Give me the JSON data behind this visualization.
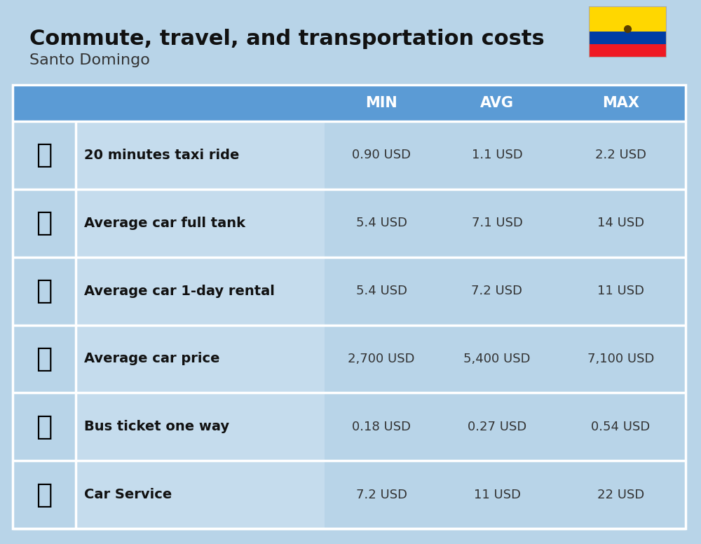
{
  "title": "Commute, travel, and transportation costs",
  "subtitle": "Santo Domingo",
  "background_color": "#b8d4e8",
  "header_bg_color": "#5b9bd5",
  "header_text_color": "#ffffff",
  "row_label_bg": "#c5dced",
  "row_data_bg": "#b8d4e8",
  "divider_color": "#ffffff",
  "columns": [
    "MIN",
    "AVG",
    "MAX"
  ],
  "rows": [
    {
      "label": "20 minutes taxi ride",
      "min": "0.90 USD",
      "avg": "1.1 USD",
      "max": "2.2 USD"
    },
    {
      "label": "Average car full tank",
      "min": "5.4 USD",
      "avg": "7.1 USD",
      "max": "14 USD"
    },
    {
      "label": "Average car 1-day rental",
      "min": "5.4 USD",
      "avg": "7.2 USD",
      "max": "11 USD"
    },
    {
      "label": "Average car price",
      "min": "2,700 USD",
      "avg": "5,400 USD",
      "max": "7,100 USD"
    },
    {
      "label": "Bus ticket one way",
      "min": "0.18 USD",
      "avg": "0.27 USD",
      "max": "0.54 USD"
    },
    {
      "label": "Car Service",
      "min": "7.2 USD",
      "avg": "11 USD",
      "max": "22 USD"
    }
  ],
  "title_fontsize": 22,
  "subtitle_fontsize": 16,
  "header_fontsize": 15,
  "cell_fontsize": 13,
  "label_fontsize": 14
}
